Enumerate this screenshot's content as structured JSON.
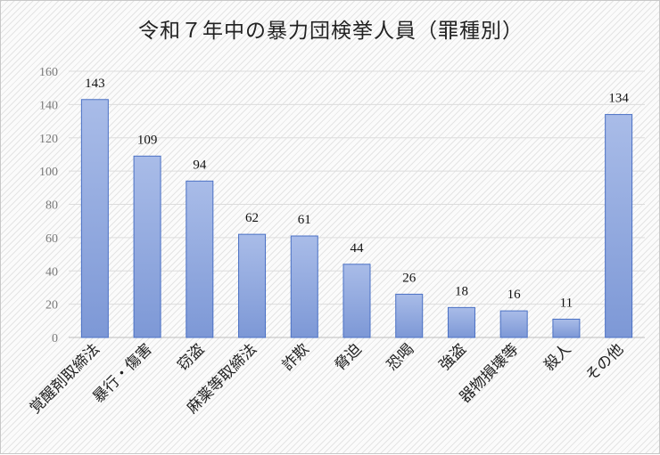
{
  "chart_data": {
    "type": "bar",
    "title": "令和７年中の暴力団検挙人員（罪種別）",
    "categories": [
      "覚醒剤取締法",
      "暴行・傷害",
      "窃盗",
      "麻薬等取締法",
      "詐欺",
      "脅迫",
      "恐喝",
      "強盗",
      "器物損壊等",
      "殺人",
      "その他"
    ],
    "values": [
      143,
      109,
      94,
      62,
      61,
      44,
      26,
      18,
      16,
      11,
      134
    ],
    "ylim": [
      0,
      160
    ],
    "yticks": [
      0,
      20,
      40,
      60,
      80,
      100,
      120,
      140,
      160
    ],
    "grid": true,
    "legend": "none",
    "bar_color_top": "#a9bce8",
    "bar_color_bottom": "#7d98d6",
    "bar_border": "#4a70c4"
  }
}
